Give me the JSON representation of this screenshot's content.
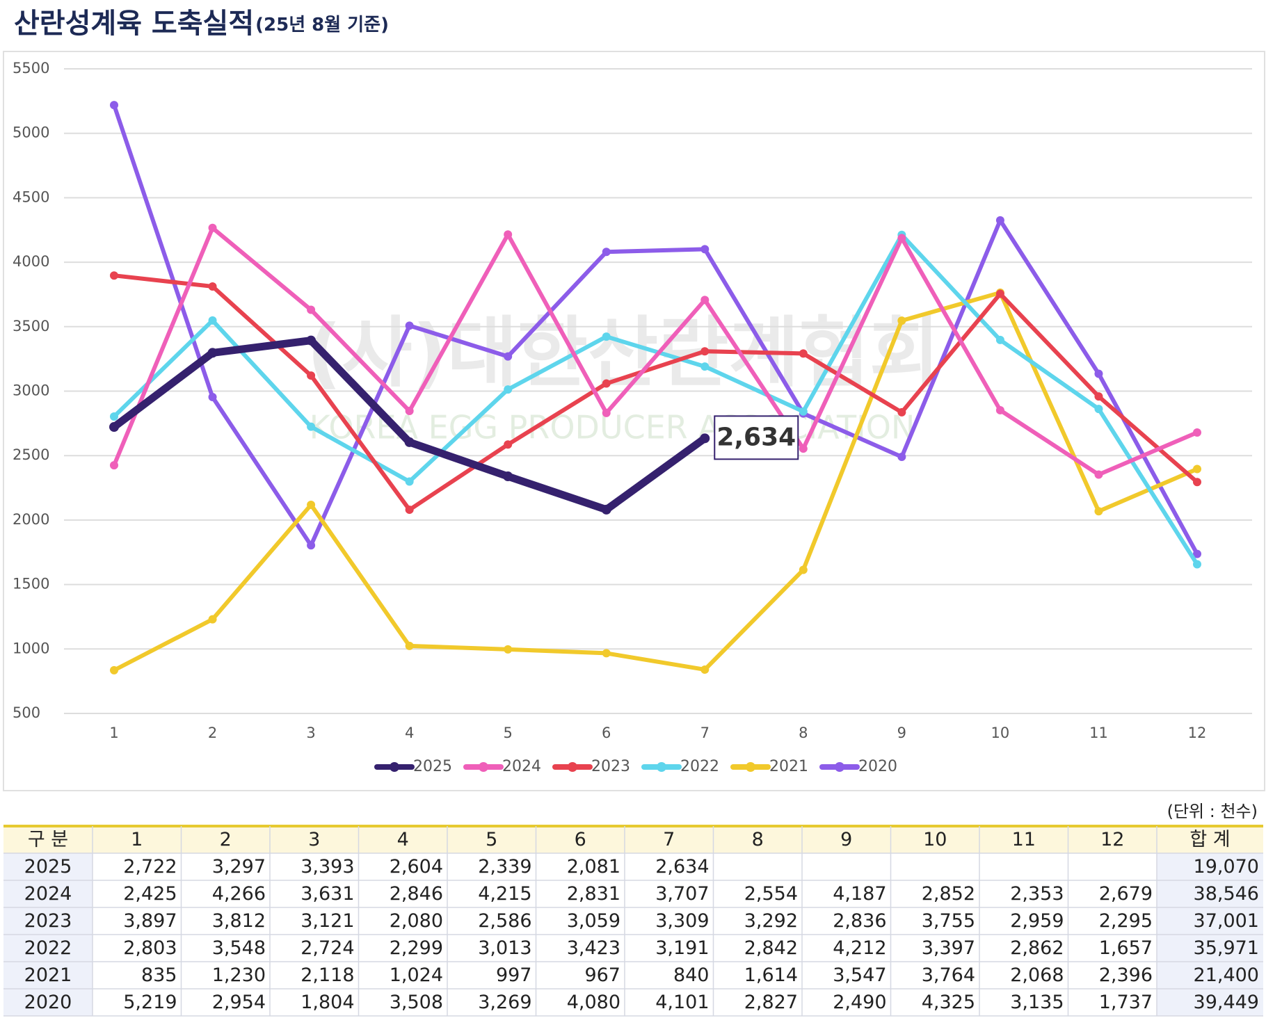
{
  "chart_data": {
    "type": "line",
    "title": "산란성계육 도축실적",
    "subtitle": "(25년 8월 기준)",
    "categories": [
      "1",
      "2",
      "3",
      "4",
      "5",
      "6",
      "7",
      "8",
      "9",
      "10",
      "11",
      "12"
    ],
    "ylim": [
      500,
      5500
    ],
    "yticks": [
      500,
      1000,
      1500,
      2000,
      2500,
      3000,
      3500,
      4000,
      4500,
      5000,
      5500
    ],
    "grid": true,
    "legend": "bottom",
    "watermark": [
      "(사)대한산란계협회",
      "KOREA EGG PRODUCER ASSOCIATION"
    ],
    "series": [
      {
        "name": "2025",
        "color": "#35216e",
        "values": [
          2722,
          3297,
          3393,
          2604,
          2339,
          2081,
          2634,
          null,
          null,
          null,
          null,
          null
        ],
        "value_labels": [
          "2,722",
          "3,297",
          "3,393",
          "2,604",
          "2,339",
          "2,081",
          "2,634",
          null,
          null,
          null,
          null,
          null
        ]
      },
      {
        "name": "2024",
        "color": "#ef5fb9",
        "values": [
          2425,
          4266,
          3631,
          2846,
          4215,
          2831,
          3707,
          2554,
          4187,
          2852,
          2353,
          2679
        ],
        "value_labels": [
          "2,425",
          "4,266",
          "3,631",
          "2,846",
          "4,215",
          "2,831",
          "3,707",
          "2,554",
          "4,187",
          "2,852",
          "2,353",
          "2,679"
        ]
      },
      {
        "name": "2023",
        "color": "#e8424f",
        "values": [
          3897,
          3812,
          3121,
          2080,
          2586,
          3059,
          3309,
          3292,
          2836,
          3755,
          2959,
          2295
        ],
        "value_labels": [
          "3,897",
          "3,812",
          "3,121",
          "2,080",
          "2,586",
          "3,059",
          "3,309",
          "3,292",
          "2,836",
          "3,755",
          "2,959",
          "2,295"
        ]
      },
      {
        "name": "2022",
        "color": "#5ed5ec",
        "values": [
          2803,
          3548,
          2724,
          2299,
          3013,
          3423,
          3191,
          2842,
          4212,
          3397,
          2862,
          1657
        ],
        "value_labels": [
          "2,803",
          "3,548",
          "2,724",
          "2,299",
          "3,013",
          "3,423",
          "3,191",
          "2,842",
          "4,212",
          "3,397",
          "2,862",
          "1,657"
        ]
      },
      {
        "name": "2021",
        "color": "#f1c92b",
        "values": [
          835,
          1230,
          2118,
          1024,
          997,
          967,
          840,
          1614,
          3547,
          3764,
          2068,
          2396
        ],
        "value_labels": [
          "835",
          "1,230",
          "2,118",
          "1,024",
          "997",
          "967",
          "840",
          "1,614",
          "3,547",
          "3,764",
          "2,068",
          "2,396"
        ]
      },
      {
        "name": "2020",
        "color": "#8c5ce9",
        "values": [
          5219,
          2954,
          1804,
          3508,
          3269,
          4080,
          4101,
          2827,
          2490,
          4325,
          3135,
          1737
        ],
        "value_labels": [
          "5,219",
          "2,954",
          "1,804",
          "3,508",
          "3,269",
          "4,080",
          "4,101",
          "2,827",
          "2,490",
          "4,325",
          "3,135",
          "1,737"
        ]
      }
    ],
    "annotation_index": 6
  },
  "table": {
    "unit": "(단위 : 천수)",
    "corner": "구 분",
    "total_header": "합 계",
    "totals": [
      "19,070",
      "38,546",
      "37,001",
      "35,971",
      "21,400",
      "39,449"
    ]
  }
}
